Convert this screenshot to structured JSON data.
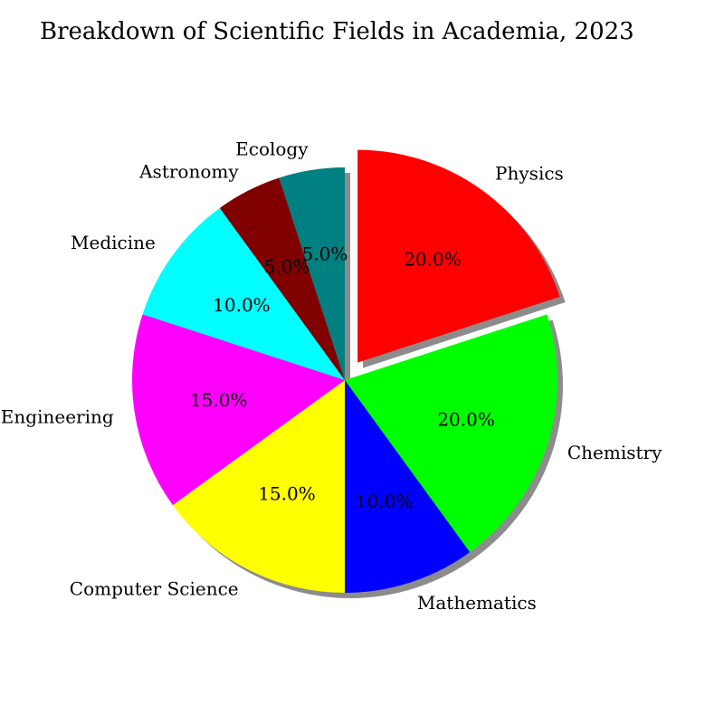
{
  "chart_data": {
    "type": "pie",
    "title": "Breakdown of Scientific Fields in Academia, 2023",
    "slices": [
      {
        "label": "Physics",
        "value": 20.0,
        "pct_label": "20.0%",
        "color": "#ff0000",
        "exploded": true
      },
      {
        "label": "Chemistry",
        "value": 20.0,
        "pct_label": "20.0%",
        "color": "#00ff00"
      },
      {
        "label": "Mathematics",
        "value": 10.0,
        "pct_label": "10.0%",
        "color": "#0000ff"
      },
      {
        "label": "Computer Science",
        "value": 15.0,
        "pct_label": "15.0%",
        "color": "#ffff00"
      },
      {
        "label": "Engineering",
        "value": 15.0,
        "pct_label": "15.0%",
        "color": "#ff00ff"
      },
      {
        "label": "Medicine",
        "value": 10.0,
        "pct_label": "10.0%",
        "color": "#00ffff"
      },
      {
        "label": "Astronomy",
        "value": 5.0,
        "pct_label": "5.0%",
        "color": "#800000"
      },
      {
        "label": "Ecology",
        "value": 5.0,
        "pct_label": "5.0%",
        "color": "#008080"
      }
    ],
    "start_angle_deg": 90,
    "direction": "clockwise",
    "shadow": true
  }
}
